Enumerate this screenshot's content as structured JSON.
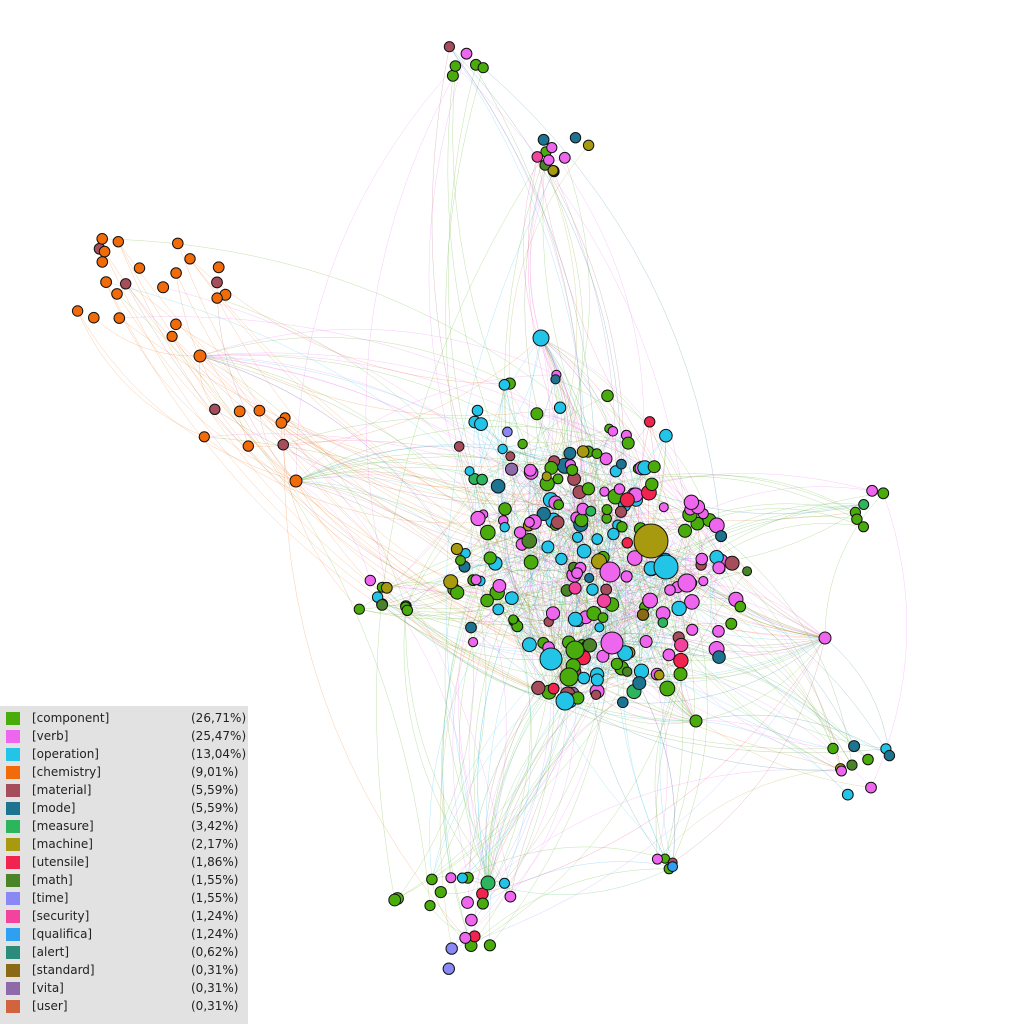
{
  "legend": {
    "items": [
      {
        "label": "[component]",
        "share": "(26,71%)",
        "color": "#4aac0c"
      },
      {
        "label": "[verb]",
        "share": "(25,47%)",
        "color": "#ee66ee"
      },
      {
        "label": "[operation]",
        "share": "(13,04%)",
        "color": "#22c4e8"
      },
      {
        "label": "[chemistry]",
        "share": "(9,01%)",
        "color": "#f26b0a"
      },
      {
        "label": "[material]",
        "share": "(5,59%)",
        "color": "#a64d5b"
      },
      {
        "label": "[mode]",
        "share": "(5,59%)",
        "color": "#1d7490"
      },
      {
        "label": "[measure]",
        "share": "(3,42%)",
        "color": "#2db55d"
      },
      {
        "label": "[machine]",
        "share": "(2,17%)",
        "color": "#a89a0e"
      },
      {
        "label": "[utensile]",
        "share": "(1,86%)",
        "color": "#f0244e"
      },
      {
        "label": "[math]",
        "share": "(1,55%)",
        "color": "#4b8329"
      },
      {
        "label": "[time]",
        "share": "(1,55%)",
        "color": "#8a88f5"
      },
      {
        "label": "[security]",
        "share": "(1,24%)",
        "color": "#f2439e"
      },
      {
        "label": "[qualifica]",
        "share": "(1,24%)",
        "color": "#2ea0f2"
      },
      {
        "label": "[alert]",
        "share": "(0,62%)",
        "color": "#2c8c7c"
      },
      {
        "label": "[standard]",
        "share": "(0,31%)",
        "color": "#8a6a14"
      },
      {
        "label": "[vita]",
        "share": "(0,31%)",
        "color": "#8e6aa8"
      },
      {
        "label": "[user]",
        "share": "(0,31%)",
        "color": "#d2633f"
      }
    ]
  }
}
